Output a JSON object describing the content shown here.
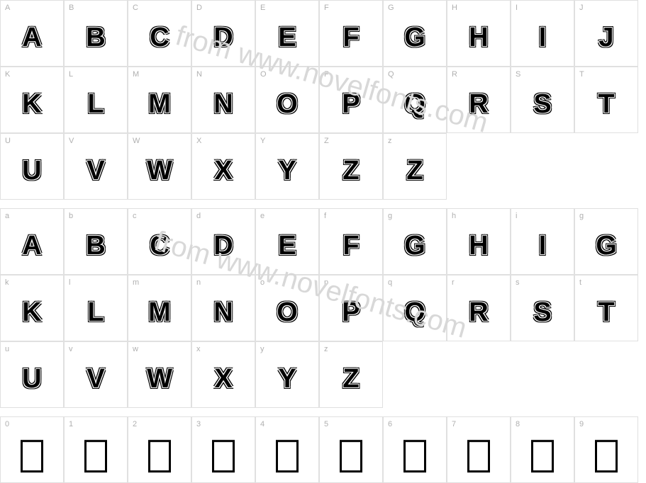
{
  "watermark_text": "from www.novelfonts.com",
  "watermark_color": "#d8d8d8",
  "border_color": "#e0e0e0",
  "label_color": "#b0b0b0",
  "glyph_color": "#000000",
  "sections": [
    {
      "rows": [
        [
          {
            "label": "A",
            "glyph": "A",
            "type": "glyph"
          },
          {
            "label": "B",
            "glyph": "B",
            "type": "glyph"
          },
          {
            "label": "C",
            "glyph": "C",
            "type": "glyph"
          },
          {
            "label": "D",
            "glyph": "D",
            "type": "glyph"
          },
          {
            "label": "E",
            "glyph": "E",
            "type": "glyph"
          },
          {
            "label": "F",
            "glyph": "F",
            "type": "glyph"
          },
          {
            "label": "G",
            "glyph": "G",
            "type": "glyph"
          },
          {
            "label": "H",
            "glyph": "H",
            "type": "glyph"
          },
          {
            "label": "I",
            "glyph": "I",
            "type": "glyph"
          },
          {
            "label": "J",
            "glyph": "J",
            "type": "glyph"
          }
        ],
        [
          {
            "label": "K",
            "glyph": "K",
            "type": "glyph"
          },
          {
            "label": "L",
            "glyph": "L",
            "type": "glyph"
          },
          {
            "label": "M",
            "glyph": "M",
            "type": "glyph"
          },
          {
            "label": "N",
            "glyph": "N",
            "type": "glyph"
          },
          {
            "label": "O",
            "glyph": "O",
            "type": "glyph"
          },
          {
            "label": "P",
            "glyph": "P",
            "type": "glyph"
          },
          {
            "label": "Q",
            "glyph": "Q",
            "type": "glyph"
          },
          {
            "label": "R",
            "glyph": "R",
            "type": "glyph"
          },
          {
            "label": "S",
            "glyph": "S",
            "type": "glyph"
          },
          {
            "label": "T",
            "glyph": "T",
            "type": "glyph"
          }
        ],
        [
          {
            "label": "U",
            "glyph": "U",
            "type": "glyph"
          },
          {
            "label": "V",
            "glyph": "V",
            "type": "glyph"
          },
          {
            "label": "W",
            "glyph": "W",
            "type": "glyph"
          },
          {
            "label": "X",
            "glyph": "X",
            "type": "glyph"
          },
          {
            "label": "Y",
            "glyph": "Y",
            "type": "glyph"
          },
          {
            "label": "Z",
            "glyph": "Z",
            "type": "glyph"
          },
          {
            "label": "z",
            "glyph": "Z",
            "type": "glyph"
          },
          {
            "label": "",
            "glyph": "",
            "type": "blank"
          },
          {
            "label": "",
            "glyph": "",
            "type": "blank"
          },
          {
            "label": "",
            "glyph": "",
            "type": "blank"
          }
        ]
      ]
    },
    {
      "rows": [
        [
          {
            "label": "a",
            "glyph": "A",
            "type": "glyph"
          },
          {
            "label": "b",
            "glyph": "B",
            "type": "glyph"
          },
          {
            "label": "c",
            "glyph": "C",
            "type": "glyph"
          },
          {
            "label": "d",
            "glyph": "D",
            "type": "glyph"
          },
          {
            "label": "e",
            "glyph": "E",
            "type": "glyph"
          },
          {
            "label": "f",
            "glyph": "F",
            "type": "glyph"
          },
          {
            "label": "g",
            "glyph": "G",
            "type": "glyph"
          },
          {
            "label": "h",
            "glyph": "H",
            "type": "glyph"
          },
          {
            "label": "i",
            "glyph": "I",
            "type": "glyph"
          },
          {
            "label": "g",
            "glyph": "G",
            "type": "glyph"
          }
        ],
        [
          {
            "label": "k",
            "glyph": "K",
            "type": "glyph"
          },
          {
            "label": "l",
            "glyph": "L",
            "type": "glyph"
          },
          {
            "label": "m",
            "glyph": "M",
            "type": "glyph"
          },
          {
            "label": "n",
            "glyph": "N",
            "type": "glyph"
          },
          {
            "label": "o",
            "glyph": "O",
            "type": "glyph"
          },
          {
            "label": "p",
            "glyph": "P",
            "type": "glyph"
          },
          {
            "label": "q",
            "glyph": "Q",
            "type": "glyph"
          },
          {
            "label": "r",
            "glyph": "R",
            "type": "glyph"
          },
          {
            "label": "s",
            "glyph": "S",
            "type": "glyph"
          },
          {
            "label": "t",
            "glyph": "T",
            "type": "glyph"
          }
        ],
        [
          {
            "label": "u",
            "glyph": "U",
            "type": "glyph"
          },
          {
            "label": "v",
            "glyph": "V",
            "type": "glyph"
          },
          {
            "label": "w",
            "glyph": "W",
            "type": "glyph"
          },
          {
            "label": "x",
            "glyph": "X",
            "type": "glyph"
          },
          {
            "label": "y",
            "glyph": "Y",
            "type": "glyph"
          },
          {
            "label": "z",
            "glyph": "Z",
            "type": "glyph"
          },
          {
            "label": "",
            "glyph": "",
            "type": "blank"
          },
          {
            "label": "",
            "glyph": "",
            "type": "blank"
          },
          {
            "label": "",
            "glyph": "",
            "type": "blank"
          },
          {
            "label": "",
            "glyph": "",
            "type": "blank"
          }
        ]
      ]
    },
    {
      "rows": [
        [
          {
            "label": "0",
            "glyph": "",
            "type": "empty-box"
          },
          {
            "label": "1",
            "glyph": "",
            "type": "empty-box"
          },
          {
            "label": "2",
            "glyph": "",
            "type": "empty-box"
          },
          {
            "label": "3",
            "glyph": "",
            "type": "empty-box"
          },
          {
            "label": "4",
            "glyph": "",
            "type": "empty-box"
          },
          {
            "label": "5",
            "glyph": "",
            "type": "empty-box"
          },
          {
            "label": "6",
            "glyph": "",
            "type": "empty-box"
          },
          {
            "label": "7",
            "glyph": "",
            "type": "empty-box"
          },
          {
            "label": "8",
            "glyph": "",
            "type": "empty-box"
          },
          {
            "label": "9",
            "glyph": "",
            "type": "empty-box"
          }
        ]
      ]
    }
  ]
}
